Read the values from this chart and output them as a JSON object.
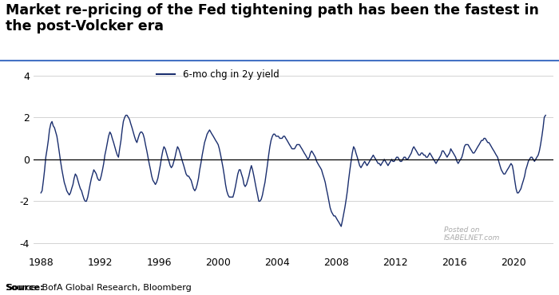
{
  "title": "Market re-pricing of the Fed tightening path has been the fastest in the post-Volcker era",
  "source_text": "Source: BofA Global Research, Bloomberg",
  "legend_label": "6-mo chg in 2y yield",
  "line_color": "#1a2e6e",
  "line_width": 1.0,
  "ylim": [
    -4.5,
    4.5
  ],
  "yticks": [
    -4,
    -2,
    0,
    2,
    4
  ],
  "xlim_start": 1987.5,
  "xlim_end": 2022.7,
  "xticks": [
    1988,
    1992,
    1996,
    2000,
    2004,
    2008,
    2012,
    2016,
    2020
  ],
  "background_color": "#ffffff",
  "title_fontsize": 12.5,
  "axis_fontsize": 9,
  "grid_color": "#cccccc",
  "blue_line_color": "#4472c4",
  "watermark_color": "#aaaaaa",
  "series": [
    [
      1988.0,
      -1.6
    ],
    [
      1988.08,
      -1.5
    ],
    [
      1988.17,
      -1.0
    ],
    [
      1988.25,
      -0.5
    ],
    [
      1988.33,
      0.1
    ],
    [
      1988.42,
      0.5
    ],
    [
      1988.5,
      0.9
    ],
    [
      1988.58,
      1.4
    ],
    [
      1988.67,
      1.7
    ],
    [
      1988.75,
      1.8
    ],
    [
      1988.83,
      1.6
    ],
    [
      1988.92,
      1.5
    ],
    [
      1989.0,
      1.3
    ],
    [
      1989.08,
      1.1
    ],
    [
      1989.17,
      0.7
    ],
    [
      1989.25,
      0.3
    ],
    [
      1989.33,
      -0.1
    ],
    [
      1989.42,
      -0.5
    ],
    [
      1989.5,
      -0.8
    ],
    [
      1989.58,
      -1.1
    ],
    [
      1989.67,
      -1.3
    ],
    [
      1989.75,
      -1.5
    ],
    [
      1989.83,
      -1.6
    ],
    [
      1989.92,
      -1.7
    ],
    [
      1990.0,
      -1.6
    ],
    [
      1990.08,
      -1.4
    ],
    [
      1990.17,
      -1.2
    ],
    [
      1990.25,
      -0.9
    ],
    [
      1990.33,
      -0.7
    ],
    [
      1990.42,
      -0.8
    ],
    [
      1990.5,
      -1.0
    ],
    [
      1990.58,
      -1.2
    ],
    [
      1990.67,
      -1.4
    ],
    [
      1990.75,
      -1.5
    ],
    [
      1990.83,
      -1.7
    ],
    [
      1990.92,
      -1.9
    ],
    [
      1991.0,
      -2.0
    ],
    [
      1991.08,
      -2.0
    ],
    [
      1991.17,
      -1.8
    ],
    [
      1991.25,
      -1.5
    ],
    [
      1991.33,
      -1.2
    ],
    [
      1991.42,
      -0.9
    ],
    [
      1991.5,
      -0.7
    ],
    [
      1991.58,
      -0.5
    ],
    [
      1991.67,
      -0.6
    ],
    [
      1991.75,
      -0.7
    ],
    [
      1991.83,
      -0.9
    ],
    [
      1991.92,
      -1.0
    ],
    [
      1992.0,
      -1.0
    ],
    [
      1992.08,
      -0.8
    ],
    [
      1992.17,
      -0.5
    ],
    [
      1992.25,
      -0.2
    ],
    [
      1992.33,
      0.2
    ],
    [
      1992.42,
      0.5
    ],
    [
      1992.5,
      0.8
    ],
    [
      1992.58,
      1.1
    ],
    [
      1992.67,
      1.3
    ],
    [
      1992.75,
      1.2
    ],
    [
      1992.83,
      1.0
    ],
    [
      1992.92,
      0.8
    ],
    [
      1993.0,
      0.6
    ],
    [
      1993.08,
      0.4
    ],
    [
      1993.17,
      0.2
    ],
    [
      1993.25,
      0.1
    ],
    [
      1993.33,
      0.5
    ],
    [
      1993.42,
      0.9
    ],
    [
      1993.5,
      1.4
    ],
    [
      1993.58,
      1.8
    ],
    [
      1993.67,
      2.0
    ],
    [
      1993.75,
      2.1
    ],
    [
      1993.83,
      2.1
    ],
    [
      1993.92,
      2.0
    ],
    [
      1994.0,
      1.9
    ],
    [
      1994.08,
      1.7
    ],
    [
      1994.17,
      1.5
    ],
    [
      1994.25,
      1.3
    ],
    [
      1994.33,
      1.1
    ],
    [
      1994.42,
      0.9
    ],
    [
      1994.5,
      0.8
    ],
    [
      1994.58,
      1.0
    ],
    [
      1994.67,
      1.2
    ],
    [
      1994.75,
      1.3
    ],
    [
      1994.83,
      1.3
    ],
    [
      1994.92,
      1.2
    ],
    [
      1995.0,
      1.0
    ],
    [
      1995.08,
      0.7
    ],
    [
      1995.17,
      0.4
    ],
    [
      1995.25,
      0.1
    ],
    [
      1995.33,
      -0.2
    ],
    [
      1995.42,
      -0.5
    ],
    [
      1995.5,
      -0.8
    ],
    [
      1995.58,
      -1.0
    ],
    [
      1995.67,
      -1.1
    ],
    [
      1995.75,
      -1.2
    ],
    [
      1995.83,
      -1.1
    ],
    [
      1995.92,
      -0.9
    ],
    [
      1996.0,
      -0.6
    ],
    [
      1996.08,
      -0.3
    ],
    [
      1996.17,
      0.1
    ],
    [
      1996.25,
      0.4
    ],
    [
      1996.33,
      0.6
    ],
    [
      1996.42,
      0.5
    ],
    [
      1996.5,
      0.3
    ],
    [
      1996.58,
      0.1
    ],
    [
      1996.67,
      -0.1
    ],
    [
      1996.75,
      -0.3
    ],
    [
      1996.83,
      -0.4
    ],
    [
      1996.92,
      -0.3
    ],
    [
      1997.0,
      -0.1
    ],
    [
      1997.08,
      0.1
    ],
    [
      1997.17,
      0.4
    ],
    [
      1997.25,
      0.6
    ],
    [
      1997.33,
      0.5
    ],
    [
      1997.42,
      0.3
    ],
    [
      1997.5,
      0.1
    ],
    [
      1997.58,
      -0.1
    ],
    [
      1997.67,
      -0.3
    ],
    [
      1997.75,
      -0.5
    ],
    [
      1997.83,
      -0.7
    ],
    [
      1997.92,
      -0.8
    ],
    [
      1998.0,
      -0.8
    ],
    [
      1998.08,
      -0.9
    ],
    [
      1998.17,
      -1.0
    ],
    [
      1998.25,
      -1.2
    ],
    [
      1998.33,
      -1.4
    ],
    [
      1998.42,
      -1.5
    ],
    [
      1998.5,
      -1.4
    ],
    [
      1998.58,
      -1.2
    ],
    [
      1998.67,
      -0.9
    ],
    [
      1998.75,
      -0.5
    ],
    [
      1998.83,
      -0.2
    ],
    [
      1998.92,
      0.2
    ],
    [
      1999.0,
      0.5
    ],
    [
      1999.08,
      0.8
    ],
    [
      1999.17,
      1.0
    ],
    [
      1999.25,
      1.2
    ],
    [
      1999.33,
      1.3
    ],
    [
      1999.42,
      1.4
    ],
    [
      1999.5,
      1.3
    ],
    [
      1999.58,
      1.2
    ],
    [
      1999.67,
      1.1
    ],
    [
      1999.75,
      1.0
    ],
    [
      1999.83,
      0.9
    ],
    [
      1999.92,
      0.8
    ],
    [
      2000.0,
      0.7
    ],
    [
      2000.08,
      0.5
    ],
    [
      2000.17,
      0.2
    ],
    [
      2000.25,
      -0.1
    ],
    [
      2000.33,
      -0.4
    ],
    [
      2000.42,
      -0.8
    ],
    [
      2000.5,
      -1.2
    ],
    [
      2000.58,
      -1.5
    ],
    [
      2000.67,
      -1.7
    ],
    [
      2000.75,
      -1.8
    ],
    [
      2000.83,
      -1.8
    ],
    [
      2000.92,
      -1.8
    ],
    [
      2001.0,
      -1.8
    ],
    [
      2001.08,
      -1.6
    ],
    [
      2001.17,
      -1.3
    ],
    [
      2001.25,
      -1.0
    ],
    [
      2001.33,
      -0.7
    ],
    [
      2001.42,
      -0.5
    ],
    [
      2001.5,
      -0.5
    ],
    [
      2001.58,
      -0.7
    ],
    [
      2001.67,
      -0.9
    ],
    [
      2001.75,
      -1.2
    ],
    [
      2001.83,
      -1.3
    ],
    [
      2001.92,
      -1.2
    ],
    [
      2002.0,
      -1.0
    ],
    [
      2002.08,
      -0.8
    ],
    [
      2002.17,
      -0.5
    ],
    [
      2002.25,
      -0.3
    ],
    [
      2002.33,
      -0.5
    ],
    [
      2002.42,
      -0.8
    ],
    [
      2002.5,
      -1.1
    ],
    [
      2002.58,
      -1.4
    ],
    [
      2002.67,
      -1.7
    ],
    [
      2002.75,
      -2.0
    ],
    [
      2002.83,
      -2.0
    ],
    [
      2002.92,
      -1.9
    ],
    [
      2003.0,
      -1.7
    ],
    [
      2003.08,
      -1.4
    ],
    [
      2003.17,
      -1.1
    ],
    [
      2003.25,
      -0.7
    ],
    [
      2003.33,
      -0.3
    ],
    [
      2003.42,
      0.2
    ],
    [
      2003.5,
      0.6
    ],
    [
      2003.58,
      0.9
    ],
    [
      2003.67,
      1.1
    ],
    [
      2003.75,
      1.2
    ],
    [
      2003.83,
      1.2
    ],
    [
      2003.92,
      1.1
    ],
    [
      2004.0,
      1.1
    ],
    [
      2004.08,
      1.1
    ],
    [
      2004.17,
      1.0
    ],
    [
      2004.25,
      1.0
    ],
    [
      2004.33,
      1.0
    ],
    [
      2004.42,
      1.1
    ],
    [
      2004.5,
      1.1
    ],
    [
      2004.58,
      1.0
    ],
    [
      2004.67,
      0.9
    ],
    [
      2004.75,
      0.8
    ],
    [
      2004.83,
      0.7
    ],
    [
      2004.92,
      0.6
    ],
    [
      2005.0,
      0.5
    ],
    [
      2005.08,
      0.5
    ],
    [
      2005.17,
      0.5
    ],
    [
      2005.25,
      0.6
    ],
    [
      2005.33,
      0.7
    ],
    [
      2005.42,
      0.7
    ],
    [
      2005.5,
      0.7
    ],
    [
      2005.58,
      0.6
    ],
    [
      2005.67,
      0.5
    ],
    [
      2005.75,
      0.4
    ],
    [
      2005.83,
      0.3
    ],
    [
      2005.92,
      0.2
    ],
    [
      2006.0,
      0.1
    ],
    [
      2006.08,
      0.0
    ],
    [
      2006.17,
      0.1
    ],
    [
      2006.25,
      0.3
    ],
    [
      2006.33,
      0.4
    ],
    [
      2006.42,
      0.3
    ],
    [
      2006.5,
      0.2
    ],
    [
      2006.58,
      0.1
    ],
    [
      2006.67,
      -0.1
    ],
    [
      2006.75,
      -0.2
    ],
    [
      2006.83,
      -0.3
    ],
    [
      2006.92,
      -0.4
    ],
    [
      2007.0,
      -0.5
    ],
    [
      2007.08,
      -0.7
    ],
    [
      2007.17,
      -0.9
    ],
    [
      2007.25,
      -1.1
    ],
    [
      2007.33,
      -1.4
    ],
    [
      2007.42,
      -1.7
    ],
    [
      2007.5,
      -2.0
    ],
    [
      2007.58,
      -2.3
    ],
    [
      2007.67,
      -2.5
    ],
    [
      2007.75,
      -2.6
    ],
    [
      2007.83,
      -2.7
    ],
    [
      2007.92,
      -2.7
    ],
    [
      2008.0,
      -2.8
    ],
    [
      2008.08,
      -2.9
    ],
    [
      2008.17,
      -3.0
    ],
    [
      2008.25,
      -3.1
    ],
    [
      2008.33,
      -3.2
    ],
    [
      2008.42,
      -2.9
    ],
    [
      2008.5,
      -2.6
    ],
    [
      2008.58,
      -2.3
    ],
    [
      2008.67,
      -1.9
    ],
    [
      2008.75,
      -1.5
    ],
    [
      2008.83,
      -1.0
    ],
    [
      2008.92,
      -0.5
    ],
    [
      2009.0,
      -0.1
    ],
    [
      2009.08,
      0.3
    ],
    [
      2009.17,
      0.6
    ],
    [
      2009.25,
      0.5
    ],
    [
      2009.33,
      0.3
    ],
    [
      2009.42,
      0.1
    ],
    [
      2009.5,
      -0.1
    ],
    [
      2009.58,
      -0.3
    ],
    [
      2009.67,
      -0.4
    ],
    [
      2009.75,
      -0.3
    ],
    [
      2009.83,
      -0.2
    ],
    [
      2009.92,
      -0.1
    ],
    [
      2010.0,
      -0.2
    ],
    [
      2010.08,
      -0.3
    ],
    [
      2010.17,
      -0.2
    ],
    [
      2010.25,
      -0.1
    ],
    [
      2010.33,
      0.0
    ],
    [
      2010.42,
      0.1
    ],
    [
      2010.5,
      0.2
    ],
    [
      2010.58,
      0.1
    ],
    [
      2010.67,
      0.0
    ],
    [
      2010.75,
      -0.1
    ],
    [
      2010.83,
      -0.2
    ],
    [
      2010.92,
      -0.2
    ],
    [
      2011.0,
      -0.3
    ],
    [
      2011.08,
      -0.2
    ],
    [
      2011.17,
      -0.1
    ],
    [
      2011.25,
      0.0
    ],
    [
      2011.33,
      -0.1
    ],
    [
      2011.42,
      -0.2
    ],
    [
      2011.5,
      -0.3
    ],
    [
      2011.58,
      -0.2
    ],
    [
      2011.67,
      -0.1
    ],
    [
      2011.75,
      0.0
    ],
    [
      2011.83,
      -0.1
    ],
    [
      2011.92,
      -0.1
    ],
    [
      2012.0,
      0.0
    ],
    [
      2012.08,
      0.1
    ],
    [
      2012.17,
      0.1
    ],
    [
      2012.25,
      0.0
    ],
    [
      2012.33,
      -0.1
    ],
    [
      2012.42,
      -0.1
    ],
    [
      2012.5,
      0.0
    ],
    [
      2012.58,
      0.1
    ],
    [
      2012.67,
      0.1
    ],
    [
      2012.75,
      0.0
    ],
    [
      2012.83,
      0.0
    ],
    [
      2012.92,
      0.1
    ],
    [
      2013.0,
      0.2
    ],
    [
      2013.08,
      0.3
    ],
    [
      2013.17,
      0.5
    ],
    [
      2013.25,
      0.6
    ],
    [
      2013.33,
      0.5
    ],
    [
      2013.42,
      0.4
    ],
    [
      2013.5,
      0.3
    ],
    [
      2013.58,
      0.2
    ],
    [
      2013.67,
      0.2
    ],
    [
      2013.75,
      0.3
    ],
    [
      2013.83,
      0.3
    ],
    [
      2013.92,
      0.2
    ],
    [
      2014.0,
      0.2
    ],
    [
      2014.08,
      0.1
    ],
    [
      2014.17,
      0.1
    ],
    [
      2014.25,
      0.2
    ],
    [
      2014.33,
      0.3
    ],
    [
      2014.42,
      0.2
    ],
    [
      2014.5,
      0.1
    ],
    [
      2014.58,
      0.0
    ],
    [
      2014.67,
      -0.1
    ],
    [
      2014.75,
      -0.2
    ],
    [
      2014.83,
      -0.1
    ],
    [
      2014.92,
      0.0
    ],
    [
      2015.0,
      0.1
    ],
    [
      2015.08,
      0.2
    ],
    [
      2015.17,
      0.4
    ],
    [
      2015.25,
      0.4
    ],
    [
      2015.33,
      0.3
    ],
    [
      2015.42,
      0.2
    ],
    [
      2015.5,
      0.1
    ],
    [
      2015.58,
      0.2
    ],
    [
      2015.67,
      0.3
    ],
    [
      2015.75,
      0.5
    ],
    [
      2015.83,
      0.4
    ],
    [
      2015.92,
      0.3
    ],
    [
      2016.0,
      0.2
    ],
    [
      2016.08,
      0.1
    ],
    [
      2016.17,
      -0.1
    ],
    [
      2016.25,
      -0.2
    ],
    [
      2016.33,
      -0.1
    ],
    [
      2016.42,
      0.0
    ],
    [
      2016.5,
      0.1
    ],
    [
      2016.58,
      0.3
    ],
    [
      2016.67,
      0.6
    ],
    [
      2016.75,
      0.7
    ],
    [
      2016.83,
      0.7
    ],
    [
      2016.92,
      0.7
    ],
    [
      2017.0,
      0.6
    ],
    [
      2017.08,
      0.5
    ],
    [
      2017.17,
      0.4
    ],
    [
      2017.25,
      0.3
    ],
    [
      2017.33,
      0.3
    ],
    [
      2017.42,
      0.4
    ],
    [
      2017.5,
      0.5
    ],
    [
      2017.58,
      0.6
    ],
    [
      2017.67,
      0.7
    ],
    [
      2017.75,
      0.8
    ],
    [
      2017.83,
      0.9
    ],
    [
      2017.92,
      0.9
    ],
    [
      2018.0,
      1.0
    ],
    [
      2018.08,
      1.0
    ],
    [
      2018.17,
      0.9
    ],
    [
      2018.25,
      0.8
    ],
    [
      2018.33,
      0.8
    ],
    [
      2018.42,
      0.7
    ],
    [
      2018.5,
      0.6
    ],
    [
      2018.58,
      0.5
    ],
    [
      2018.67,
      0.4
    ],
    [
      2018.75,
      0.3
    ],
    [
      2018.83,
      0.2
    ],
    [
      2018.92,
      0.1
    ],
    [
      2019.0,
      -0.1
    ],
    [
      2019.08,
      -0.3
    ],
    [
      2019.17,
      -0.5
    ],
    [
      2019.25,
      -0.6
    ],
    [
      2019.33,
      -0.7
    ],
    [
      2019.42,
      -0.7
    ],
    [
      2019.5,
      -0.6
    ],
    [
      2019.58,
      -0.5
    ],
    [
      2019.67,
      -0.4
    ],
    [
      2019.75,
      -0.3
    ],
    [
      2019.83,
      -0.2
    ],
    [
      2019.92,
      -0.3
    ],
    [
      2020.0,
      -0.6
    ],
    [
      2020.08,
      -1.0
    ],
    [
      2020.17,
      -1.4
    ],
    [
      2020.25,
      -1.6
    ],
    [
      2020.33,
      -1.6
    ],
    [
      2020.42,
      -1.5
    ],
    [
      2020.5,
      -1.4
    ],
    [
      2020.58,
      -1.2
    ],
    [
      2020.67,
      -1.0
    ],
    [
      2020.75,
      -0.8
    ],
    [
      2020.83,
      -0.5
    ],
    [
      2020.92,
      -0.3
    ],
    [
      2021.0,
      -0.1
    ],
    [
      2021.08,
      0.0
    ],
    [
      2021.17,
      0.1
    ],
    [
      2021.25,
      0.1
    ],
    [
      2021.33,
      0.0
    ],
    [
      2021.42,
      -0.1
    ],
    [
      2021.5,
      0.0
    ],
    [
      2021.58,
      0.1
    ],
    [
      2021.67,
      0.2
    ],
    [
      2021.75,
      0.4
    ],
    [
      2021.83,
      0.7
    ],
    [
      2021.92,
      1.1
    ],
    [
      2022.0,
      1.5
    ],
    [
      2022.08,
      2.0
    ],
    [
      2022.17,
      2.1
    ]
  ]
}
